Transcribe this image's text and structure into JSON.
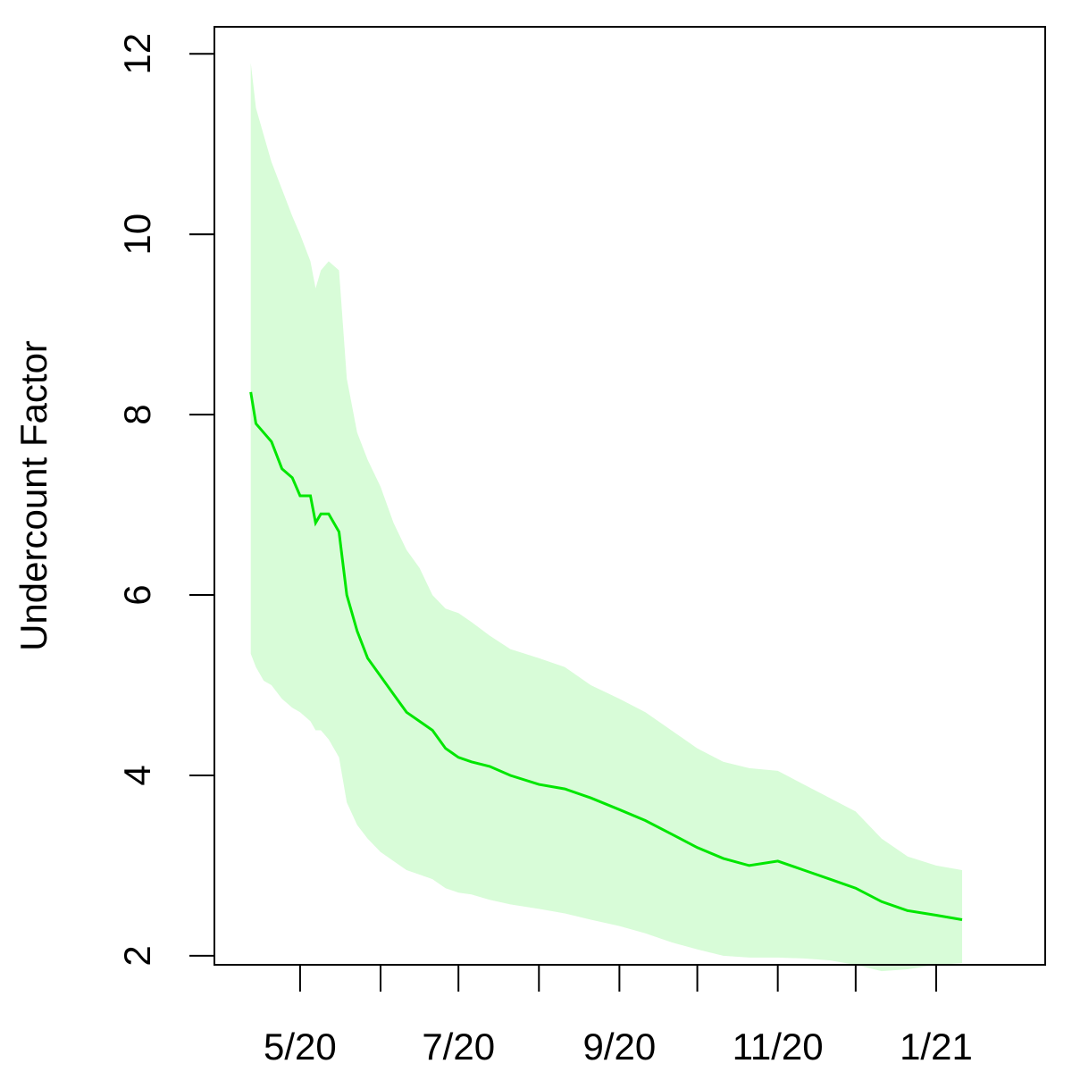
{
  "chart_data": {
    "type": "line",
    "title": "",
    "xlabel": "",
    "ylabel": "Undercount Factor",
    "ylim": [
      1.9,
      12.3
    ],
    "xlim": [
      "2020-03-29",
      "2021-02-12"
    ],
    "yticks": [
      2,
      4,
      6,
      8,
      10,
      12
    ],
    "xticks": [
      {
        "date": "2020-05-01",
        "label": "5/20"
      },
      {
        "date": "2020-06-01",
        "label": ""
      },
      {
        "date": "2020-07-01",
        "label": "7/20"
      },
      {
        "date": "2020-08-01",
        "label": ""
      },
      {
        "date": "2020-09-01",
        "label": "9/20"
      },
      {
        "date": "2020-10-01",
        "label": ""
      },
      {
        "date": "2020-11-01",
        "label": "11/20"
      },
      {
        "date": "2020-12-01",
        "label": ""
      },
      {
        "date": "2021-01-01",
        "label": "1/21"
      }
    ],
    "grid": false,
    "colors": {
      "line": "#00e600",
      "band": "#d8fcd8"
    },
    "series": [
      {
        "x": [
          "2020-04-12",
          "2020-04-14",
          "2020-04-17",
          "2020-04-20",
          "2020-04-24",
          "2020-04-28",
          "2020-05-01",
          "2020-05-05",
          "2020-05-07",
          "2020-05-09",
          "2020-05-12",
          "2020-05-16",
          "2020-05-19",
          "2020-05-23",
          "2020-05-27",
          "2020-06-01",
          "2020-06-06",
          "2020-06-11",
          "2020-06-16",
          "2020-06-21",
          "2020-06-26",
          "2020-07-01",
          "2020-07-06",
          "2020-07-13",
          "2020-07-21",
          "2020-08-01",
          "2020-08-11",
          "2020-08-21",
          "2020-09-01",
          "2020-09-11",
          "2020-09-21",
          "2020-10-01",
          "2020-10-11",
          "2020-10-21",
          "2020-11-01",
          "2020-11-11",
          "2020-11-21",
          "2020-12-01",
          "2020-12-11",
          "2020-12-21",
          "2021-01-01",
          "2021-01-11"
        ],
        "y": [
          8.25,
          7.9,
          7.8,
          7.7,
          7.4,
          7.3,
          7.1,
          7.1,
          6.8,
          6.9,
          6.9,
          6.7,
          6.0,
          5.6,
          5.3,
          5.1,
          4.9,
          4.7,
          4.6,
          4.5,
          4.3,
          4.2,
          4.15,
          4.1,
          4.0,
          3.9,
          3.85,
          3.75,
          3.62,
          3.5,
          3.35,
          3.2,
          3.08,
          3.0,
          3.05,
          2.95,
          2.85,
          2.75,
          2.6,
          2.5,
          2.45,
          2.4
        ],
        "lower": [
          5.35,
          5.2,
          5.05,
          5.0,
          4.85,
          4.75,
          4.7,
          4.6,
          4.5,
          4.5,
          4.4,
          4.2,
          3.7,
          3.45,
          3.3,
          3.15,
          3.05,
          2.95,
          2.9,
          2.85,
          2.75,
          2.7,
          2.68,
          2.62,
          2.57,
          2.52,
          2.47,
          2.4,
          2.33,
          2.25,
          2.15,
          2.07,
          2.0,
          1.98,
          1.98,
          1.97,
          1.95,
          1.9,
          1.83,
          1.85,
          1.9,
          1.92
        ],
        "upper": [
          11.9,
          11.4,
          11.1,
          10.8,
          10.5,
          10.2,
          10.0,
          9.7,
          9.4,
          9.6,
          9.7,
          9.6,
          8.4,
          7.8,
          7.5,
          7.2,
          6.8,
          6.5,
          6.3,
          6.0,
          5.85,
          5.8,
          5.7,
          5.55,
          5.4,
          5.3,
          5.2,
          5.0,
          4.85,
          4.7,
          4.5,
          4.3,
          4.15,
          4.08,
          4.05,
          3.9,
          3.75,
          3.6,
          3.3,
          3.1,
          3.0,
          2.95
        ]
      }
    ]
  }
}
